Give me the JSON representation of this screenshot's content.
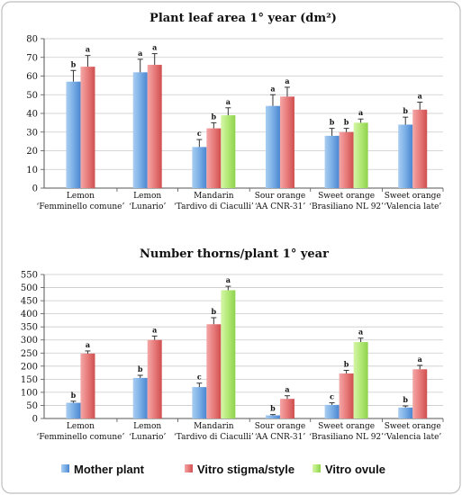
{
  "legend": {
    "items": [
      {
        "label": "Mother plant",
        "color": "#5b9bd5"
      },
      {
        "label": "Vitro stigma/style",
        "color": "#e06666"
      },
      {
        "label": "Vitro ovule",
        "color": "#99dd55"
      }
    ]
  },
  "chart_data": [
    {
      "type": "bar",
      "title": "Plant leaf area 1° year (dm²)",
      "xlabel": "",
      "ylabel": "",
      "ylim": [
        0,
        80
      ],
      "yticks": [
        0,
        10,
        20,
        30,
        40,
        50,
        60,
        70,
        80
      ],
      "grid": true,
      "legend": "bottom",
      "categories": [
        [
          "Lemon",
          "‘Femminello comune’"
        ],
        [
          "Lemon",
          "‘Lunario’"
        ],
        [
          "Mandarin",
          "‘Tardivo di Ciaculli’"
        ],
        [
          "Sour orange",
          "‘AA CNR-31’"
        ],
        [
          "Sweet orange",
          "‘Brasiliano NL 92’"
        ],
        [
          "Sweet orange",
          "‘Valencia late’"
        ]
      ],
      "series": [
        {
          "name": "Mother plant",
          "color": "#5b9bd5",
          "values": [
            57,
            62,
            22,
            44,
            28,
            34
          ],
          "errors": [
            6,
            7,
            4,
            6,
            4,
            4
          ],
          "labels": [
            "b",
            "a",
            "c",
            "a",
            "b",
            "b"
          ]
        },
        {
          "name": "Vitro stigma/style",
          "color": "#e06666",
          "values": [
            65,
            66,
            32,
            49,
            30,
            42
          ],
          "errors": [
            6,
            6,
            3,
            5,
            2,
            4
          ],
          "labels": [
            "a",
            "a",
            "b",
            "a",
            "b",
            "a"
          ]
        },
        {
          "name": "Vitro ovule",
          "color": "#99dd55",
          "values": [
            null,
            null,
            39,
            null,
            35,
            null
          ],
          "errors": [
            null,
            null,
            4,
            null,
            2,
            null
          ],
          "labels": [
            null,
            null,
            "a",
            null,
            "a",
            null
          ]
        }
      ]
    },
    {
      "type": "bar",
      "title": "Number thorns/plant 1° year",
      "xlabel": "",
      "ylabel": "",
      "ylim": [
        0,
        550
      ],
      "yticks": [
        0,
        50,
        100,
        150,
        200,
        250,
        300,
        350,
        400,
        450,
        500,
        550
      ],
      "grid": true,
      "legend": "bottom",
      "categories": [
        [
          "Lemon",
          "‘Femminello comune’"
        ],
        [
          "Lemon",
          "‘Lunario’"
        ],
        [
          "Mandarin",
          "‘Tardivo di Ciaculli’"
        ],
        [
          "Sour orange",
          "‘AA CNR-31’"
        ],
        [
          "Sweet orange",
          "‘Brasiliano NL 92’"
        ],
        [
          "Sweet orange",
          "‘Valencia late’"
        ]
      ],
      "series": [
        {
          "name": "Mother plant",
          "color": "#5b9bd5",
          "values": [
            60,
            155,
            120,
            12,
            52,
            42
          ],
          "errors": [
            6,
            10,
            15,
            3,
            8,
            6
          ],
          "labels": [
            "b",
            "b",
            "c",
            "b",
            "c",
            "b"
          ]
        },
        {
          "name": "Vitro stigma/style",
          "color": "#e06666",
          "values": [
            248,
            300,
            360,
            75,
            172,
            188
          ],
          "errors": [
            10,
            15,
            25,
            12,
            12,
            15
          ],
          "labels": [
            "a",
            "a",
            "b",
            "a",
            "b",
            "a"
          ]
        },
        {
          "name": "Vitro ovule",
          "color": "#99dd55",
          "values": [
            null,
            null,
            490,
            null,
            292,
            null
          ],
          "errors": [
            null,
            null,
            15,
            null,
            15,
            null
          ],
          "labels": [
            null,
            null,
            "a",
            null,
            "a",
            null
          ]
        }
      ]
    }
  ]
}
